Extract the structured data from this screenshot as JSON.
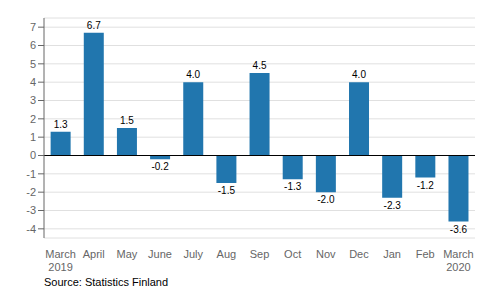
{
  "chart_data": {
    "type": "bar",
    "categories": [
      "March\n2019",
      "April",
      "May",
      "June",
      "July",
      "Aug",
      "Sep",
      "Oct",
      "Nov",
      "Dec",
      "Jan",
      "Feb",
      "March\n2020"
    ],
    "values": [
      1.3,
      6.7,
      1.5,
      -0.2,
      4.0,
      -1.5,
      4.5,
      -1.3,
      -2.0,
      4.0,
      -2.3,
      -1.2,
      -3.6
    ],
    "value_labels": [
      "1.3",
      "6.7",
      "1.5",
      "-0.2",
      "4.0",
      "-1.5",
      "4.5",
      "-1.3",
      "-2.0",
      "4.0",
      "-2.3",
      "-1.2",
      "-3.6"
    ],
    "color": "#2176ae",
    "ylim": [
      -4.5,
      7.5
    ],
    "yticks": [
      -4,
      -3,
      -2,
      -1,
      0,
      1,
      2,
      3,
      4,
      5,
      6,
      7
    ],
    "grid": true,
    "data_labels": true,
    "annotations": [
      "Source: Statistics Finland"
    ]
  }
}
